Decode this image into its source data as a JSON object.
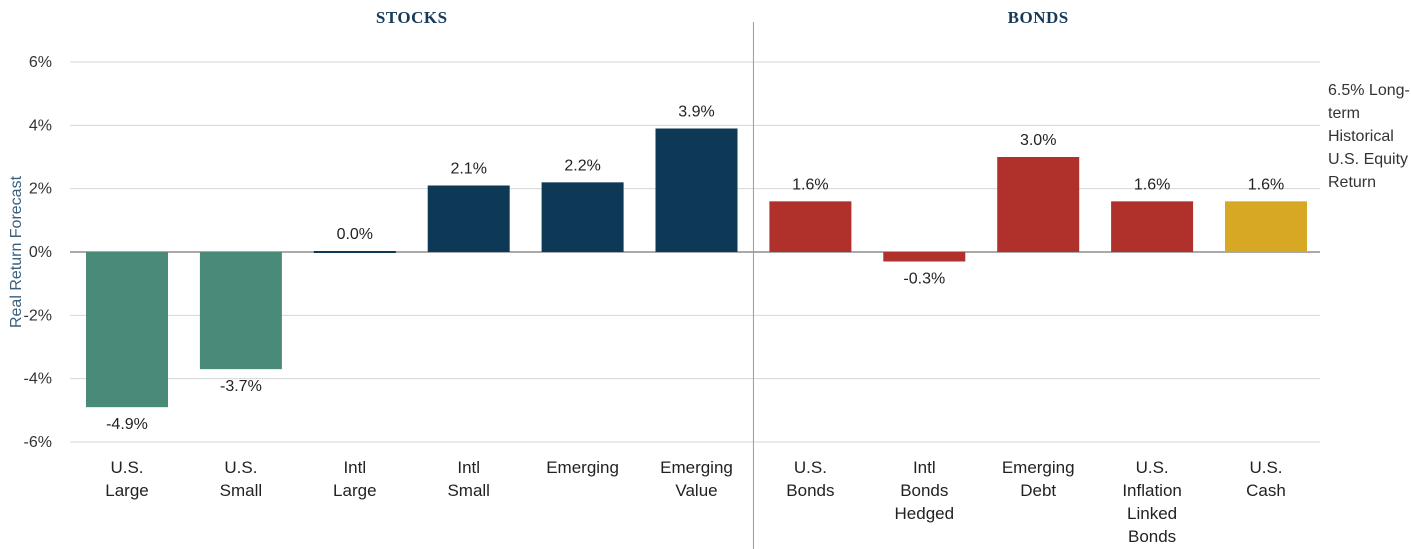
{
  "chart_data": {
    "type": "bar",
    "ylabel": "Real Return Forecast",
    "ylim": [
      -6,
      6
    ],
    "yticks": [
      "6%",
      "4%",
      "2%",
      "0%",
      "-2%",
      "-4%",
      "-6%"
    ],
    "ytick_values": [
      6,
      4,
      2,
      0,
      -2,
      -4,
      -6
    ],
    "sections": [
      {
        "label": "STOCKS",
        "first": 0,
        "last": 5
      },
      {
        "label": "BONDS",
        "first": 6,
        "last": 10
      }
    ],
    "bars": [
      {
        "category": [
          "U.S.",
          "Large"
        ],
        "value": -4.9,
        "label": "-4.9%",
        "color": "#4a8a78"
      },
      {
        "category": [
          "U.S.",
          "Small"
        ],
        "value": -3.7,
        "label": "-3.7%",
        "color": "#4a8a78"
      },
      {
        "category": [
          "Intl",
          "Large"
        ],
        "value": 0.0,
        "label": "0.0%",
        "color": "#0d3957"
      },
      {
        "category": [
          "Intl",
          "Small"
        ],
        "value": 2.1,
        "label": "2.1%",
        "color": "#0d3957"
      },
      {
        "category": [
          "Emerging"
        ],
        "value": 2.2,
        "label": "2.2%",
        "color": "#0d3957"
      },
      {
        "category": [
          "Emerging",
          "Value"
        ],
        "value": 3.9,
        "label": "3.9%",
        "color": "#0d3957"
      },
      {
        "category": [
          "U.S.",
          "Bonds"
        ],
        "value": 1.6,
        "label": "1.6%",
        "color": "#b0312c"
      },
      {
        "category": [
          "Intl",
          "Bonds",
          "Hedged"
        ],
        "value": -0.3,
        "label": "-0.3%",
        "color": "#b0312c"
      },
      {
        "category": [
          "Emerging",
          "Debt"
        ],
        "value": 3.0,
        "label": "3.0%",
        "color": "#b0312c"
      },
      {
        "category": [
          "U.S.",
          "Inflation",
          "Linked",
          "Bonds"
        ],
        "value": 1.6,
        "label": "1.6%",
        "color": "#b0312c"
      },
      {
        "category": [
          "U.S.",
          "Cash"
        ],
        "value": 1.6,
        "label": "1.6%",
        "color": "#d6a823"
      }
    ],
    "annotation": [
      "6.5% Long-",
      "term",
      "Historical",
      "U.S. Equity",
      "Return"
    ],
    "grid": true
  }
}
